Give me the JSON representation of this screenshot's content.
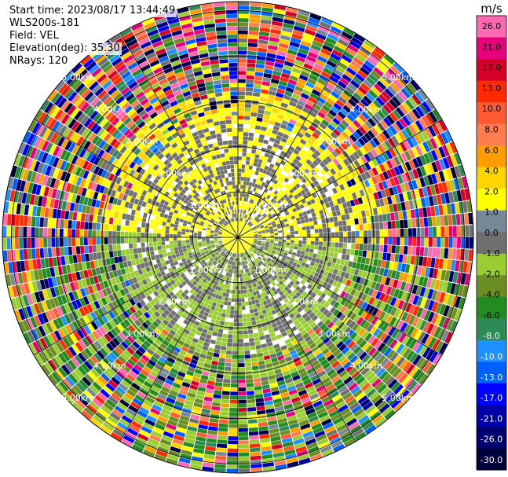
{
  "header": {
    "start_time": "Start time: 2023/08/17 13:44:49",
    "instrument": "WLS200s-181",
    "field": "Field: VEL",
    "elevation": "Elevation(deg): 35.30",
    "nrays": "NRays: 120"
  },
  "chart_data": {
    "type": "heatmap",
    "subtype": "polar-ppi",
    "field": "VEL",
    "unit": "m/s",
    "n_rays": 120,
    "elevation_deg": 35.3,
    "range_km_max": 5.2,
    "range_rings_km": [
      1,
      2,
      3,
      4,
      5
    ],
    "ring_labels": [
      "1.00km",
      "2.00km",
      "3.00km",
      "4.00km",
      "5.00km"
    ],
    "colorbar": {
      "unit": "m/s",
      "tick_labels": [
        "26.0",
        "21.0",
        "17.0",
        "13.0",
        "10.0",
        "8.0",
        "6.0",
        "4.0",
        "2.0",
        "1.0",
        "0.0",
        "-1.0",
        "-2.0",
        "-4.0",
        "-6.0",
        "-8.0",
        "-10.0",
        "-13.0",
        "-17.0",
        "-21.0",
        "-26.0",
        "-30.0"
      ],
      "bins": [
        {
          "color": "#ff69b4",
          "label": "26.0"
        },
        {
          "color": "#e8007a",
          "label": "21.0"
        },
        {
          "color": "#d4002a",
          "label": "17.0"
        },
        {
          "color": "#ff2a00",
          "label": "13.0"
        },
        {
          "color": "#ff5a32",
          "label": "10.0"
        },
        {
          "color": "#ff7c50",
          "label": "8.0"
        },
        {
          "color": "#ff9d00",
          "label": "6.0"
        },
        {
          "color": "#ffd400",
          "label": "4.0"
        },
        {
          "color": "#ffff00",
          "label": "2.0"
        },
        {
          "color": "#778899",
          "label": "1.0"
        },
        {
          "color": "#707070",
          "label": "0.0"
        },
        {
          "color": "#9acd32",
          "label": "-1.0"
        },
        {
          "color": "#6b8e23",
          "label": "-2.0"
        },
        {
          "color": "#228b22",
          "label": "-4.0"
        },
        {
          "color": "#2e8b57",
          "label": "-6.0"
        },
        {
          "color": "#1e90ff",
          "label": "-8.0"
        },
        {
          "color": "#0060ff",
          "label": "-10.0"
        },
        {
          "color": "#0000ff",
          "label": "-13.0"
        },
        {
          "color": "#0000aa",
          "label": "-17.0"
        },
        {
          "color": "#00006e",
          "label": "-21.0"
        },
        {
          "color": "#00003c",
          "label": "-26.0"
        }
      ]
    },
    "field_pattern": [
      {
        "range_km": [
          0.0,
          0.3
        ],
        "velocity_m_s": 3,
        "note": "center"
      },
      {
        "range_km": [
          0.3,
          1.2
        ],
        "velocity_m_s": 0
      },
      {
        "range_km": [
          1.2,
          1.9
        ],
        "velocity_m_s": 0
      },
      {
        "range_km": [
          1.9,
          2.6
        ],
        "velocity_m_s": 0
      },
      {
        "range_km": [
          2.6,
          5.2
        ],
        "velocity_m_s": "noise"
      }
    ]
  }
}
